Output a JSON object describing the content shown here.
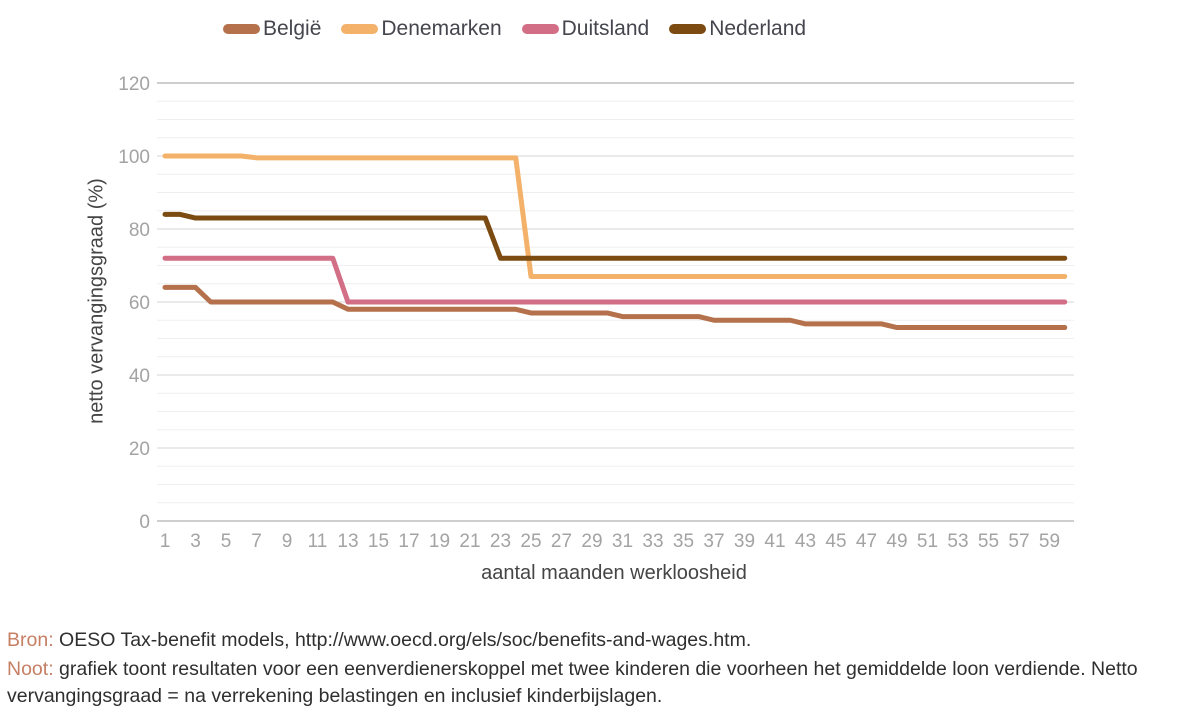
{
  "accent_color": "#c67f63",
  "legend": {
    "items": [
      {
        "label": "België",
        "color": "#b5714c"
      },
      {
        "label": "Denemarken",
        "color": "#f3b169"
      },
      {
        "label": "Duitsland",
        "color": "#d26e86"
      },
      {
        "label": "Nederland",
        "color": "#7c4b12"
      }
    ]
  },
  "chart_data": {
    "type": "line",
    "title": "",
    "xlabel": "aantal maanden werkloosheid",
    "ylabel": "netto vervangingsgraad (%)",
    "x_range": [
      1,
      60
    ],
    "ylim": [
      0,
      120
    ],
    "x_ticks": [
      1,
      3,
      5,
      7,
      9,
      11,
      13,
      15,
      17,
      19,
      21,
      23,
      25,
      27,
      29,
      31,
      33,
      35,
      37,
      39,
      41,
      43,
      45,
      47,
      49,
      51,
      53,
      55,
      57,
      59
    ],
    "y_ticks": [
      0,
      20,
      40,
      60,
      80,
      100,
      120
    ],
    "grid": {
      "minor_step": 5,
      "major_step": 20
    },
    "legend_position": "top",
    "series": [
      {
        "name": "België",
        "color": "#b5714c",
        "segments": [
          {
            "from": 1,
            "to": 3,
            "value": 64
          },
          {
            "from": 4,
            "to": 12,
            "value": 60
          },
          {
            "from": 13,
            "to": 24,
            "value": 58
          },
          {
            "from": 25,
            "to": 30,
            "value": 57
          },
          {
            "from": 31,
            "to": 36,
            "value": 56
          },
          {
            "from": 37,
            "to": 42,
            "value": 55
          },
          {
            "from": 43,
            "to": 48,
            "value": 54
          },
          {
            "from": 49,
            "to": 60,
            "value": 53
          }
        ]
      },
      {
        "name": "Denemarken",
        "color": "#f3b169",
        "segments": [
          {
            "from": 1,
            "to": 6,
            "value": 100
          },
          {
            "from": 7,
            "to": 24,
            "value": 99.5
          },
          {
            "from": 25,
            "to": 60,
            "value": 67
          }
        ]
      },
      {
        "name": "Duitsland",
        "color": "#d26e86",
        "segments": [
          {
            "from": 1,
            "to": 12,
            "value": 72
          },
          {
            "from": 13,
            "to": 60,
            "value": 60
          }
        ]
      },
      {
        "name": "Nederland",
        "color": "#7c4b12",
        "segments": [
          {
            "from": 1,
            "to": 2,
            "value": 84
          },
          {
            "from": 3,
            "to": 22,
            "value": 83
          },
          {
            "from": 23,
            "to": 60,
            "value": 72
          }
        ]
      }
    ]
  },
  "axes": {
    "y_title": "netto vervangingsgraad (%)",
    "x_title": "aantal maanden werkloosheid"
  },
  "footer": {
    "source_label": "Bron:",
    "source_text": " OESO Tax-benefit models, http://www.oecd.org/els/soc/benefits-and-wages.htm.",
    "note_label": "Noot:",
    "note_text": " grafiek toont resultaten voor een eenverdienerskoppel met twee kinderen die voorheen het gemiddelde loon verdiende. Netto vervangingsgraad = na verrekening belastingen en inclusief kinderbijslagen."
  }
}
